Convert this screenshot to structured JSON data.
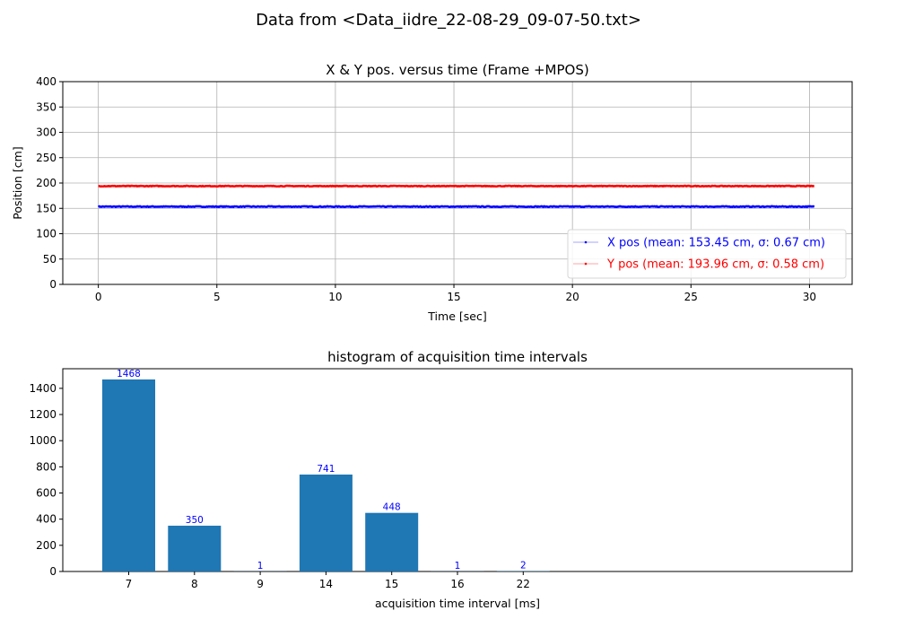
{
  "figure_title": "Data from <Data_iidre_22-08-29_09-07-50.txt>",
  "chart_data": [
    {
      "type": "line",
      "title": "X & Y pos. versus time (Frame +MPOS)",
      "xlabel": "Time [sec]",
      "ylabel": "Position [cm]",
      "xlim": [
        -1.5,
        31.8
      ],
      "ylim": [
        0,
        400
      ],
      "xticks": [
        0,
        5,
        10,
        15,
        20,
        25,
        30
      ],
      "yticks": [
        0,
        50,
        100,
        150,
        200,
        250,
        300,
        350,
        400
      ],
      "grid": true,
      "legend_placement": "lower-right",
      "x_range": [
        0,
        30.2
      ],
      "series": [
        {
          "name": "X pos (mean: 153.45 cm, σ: 0.67 cm)",
          "color": "#0000ff",
          "mean": 153.45,
          "std": 0.67
        },
        {
          "name": "Y pos (mean: 193.96 cm, σ: 0.58 cm)",
          "color": "#ff0000",
          "mean": 193.96,
          "std": 0.58
        }
      ]
    },
    {
      "type": "bar",
      "title": "histogram of acquisition time intervals",
      "xlabel": "acquisition time interval [ms]",
      "ylabel": "",
      "categories": [
        "7",
        "8",
        "9",
        "14",
        "15",
        "16",
        "22"
      ],
      "values": [
        1468,
        350,
        1,
        741,
        448,
        1,
        2
      ],
      "value_labels": [
        "1468",
        "350",
        "1",
        "741",
        "448",
        "1",
        "2"
      ],
      "ylim": [
        0,
        1550
      ],
      "yticks": [
        0,
        200,
        400,
        600,
        800,
        1000,
        1200,
        1400
      ],
      "grid": false,
      "bar_color": "#1f77b4",
      "label_color": "#0000ff"
    }
  ]
}
